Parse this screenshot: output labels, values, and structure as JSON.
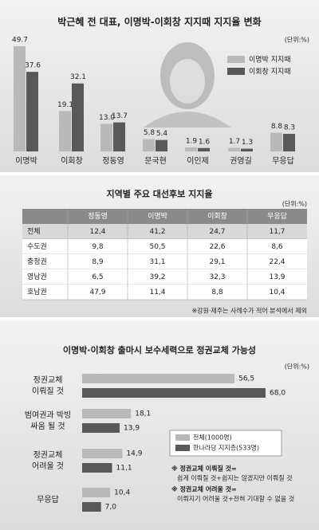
{
  "chart_data": [
    {
      "type": "bar",
      "title": "박근혜 전 대표, 이명박-이회창 지지때 지지율 변화",
      "unit": "(단위:%)",
      "categories": [
        "이명박",
        "이회창",
        "정동영",
        "문국현",
        "이인제",
        "권영길",
        "무응답"
      ],
      "series": [
        {
          "name": "이명박 지지때",
          "color": "#b9b9b9",
          "values": [
            49.7,
            19.1,
            13.0,
            5.8,
            1.9,
            1.7,
            8.8
          ],
          "value_labels": [
            "49.7",
            "19.1",
            "13.0",
            "5.8",
            "1.9",
            "1.7",
            "8.8"
          ]
        },
        {
          "name": "이회창 지지때",
          "color": "#585858",
          "values": [
            37.6,
            32.1,
            13.7,
            5.4,
            1.6,
            1.3,
            8.3
          ],
          "value_labels": [
            "37.6",
            "32.1",
            "13.7",
            "5.4",
            "1.6",
            "1.3",
            "8.3"
          ]
        }
      ]
    },
    {
      "type": "hbar",
      "title": "이명박·이회창 출마시 보수세력으로 정권교체 가능성",
      "unit": "(단위:%)",
      "categories": [
        [
          "정권교체",
          "이뤄질 것"
        ],
        [
          "범여권과 박빙",
          "싸움 될 것"
        ],
        [
          "정권교체",
          "어려울 것"
        ],
        [
          "무응답"
        ]
      ],
      "series": [
        {
          "name": "전체(1000명)",
          "color": "#b9b9b9",
          "values": [
            56.5,
            18.1,
            14.9,
            10.4
          ],
          "value_labels": [
            "56,5",
            "18,1",
            "14,9",
            "10,4"
          ]
        },
        {
          "name": "한나라당 지지층(533명)",
          "color": "#585858",
          "values": [
            68.0,
            13.9,
            11.1,
            7.0
          ],
          "value_labels": [
            "68,0",
            "13,9",
            "11,1",
            "7,0"
          ]
        }
      ],
      "notes": [
        {
          "head": "※ 정권교체 이뤄질 것=",
          "body": "쉽게 이뤄질 것+쉽지는 않겠지만 이뤄질 것"
        },
        {
          "head": "※ 정권교체 어려울 것=",
          "body": "이뤄지기 어려울 것+전혀 기대할 수 없을 것"
        }
      ]
    }
  ],
  "table": {
    "title": "지역별 주요 대선후보 지지율",
    "unit": "(단위:%)",
    "header": [
      "정동영",
      "이명박",
      "이회창",
      "무응답"
    ],
    "rows": [
      [
        "전체",
        "12,4",
        "41,2",
        "24,7",
        "11,7"
      ],
      [
        "수도권",
        "9,8",
        "50,5",
        "22,6",
        "8,6"
      ],
      [
        "충청권",
        "8,9",
        "31,1",
        "29,1",
        "22,4"
      ],
      [
        "영남권",
        "6,5",
        "39,2",
        "32,3",
        "13,9"
      ],
      [
        "호남권",
        "47,9",
        "11,4",
        "8,8",
        "10,4"
      ]
    ],
    "note": "※강원·제주는 사례수가 적어 분석에서 제외"
  }
}
